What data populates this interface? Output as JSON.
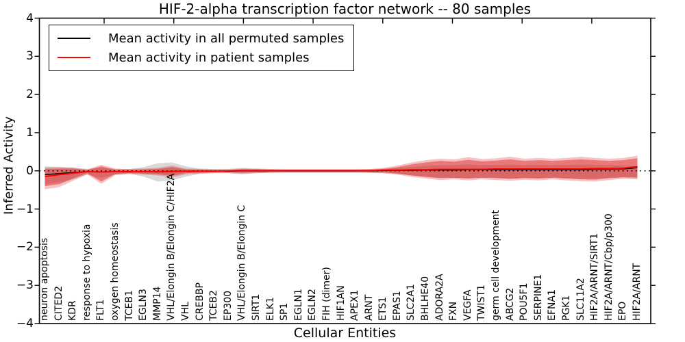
{
  "figure": {
    "title": "HIF-2-alpha transcription factor network -- 80 samples",
    "xlabel": "Cellular Entities",
    "ylabel": "Inferred Activity"
  },
  "chart_data": {
    "type": "line",
    "title": "HIF-2-alpha transcription factor network -- 80 samples",
    "xlabel": "Cellular Entities",
    "ylabel": "Inferred Activity",
    "ylim": [
      -4,
      4
    ],
    "yticks": [
      "4",
      "3",
      "2",
      "1",
      "0",
      "-1",
      "-2",
      "-3",
      "-4"
    ],
    "grid": false,
    "legend_position": "upper left",
    "zero_line": {
      "style": "dotted",
      "color": "#000000",
      "y": 0
    },
    "categories": [
      "neuron apoptosis",
      "CITED2",
      "KDR",
      "response to hypoxia",
      "FLT1",
      "oxygen homeostasis",
      "TCEB1",
      "EGLN3",
      "MMP14",
      "VHL/Elongin B/Elongin C/HIF2A",
      "VHL",
      "CREBBP",
      "TCEB2",
      "EP300",
      "VHL/Elongin B/Elongin C",
      "SIRT1",
      "ELK1",
      "SP1",
      "EGLN1",
      "EGLN2",
      "FIH (dimer)",
      "HIF1AN",
      "APEX1",
      "ARNT",
      "ETS1",
      "EPAS1",
      "SLC2A1",
      "BHLHE40",
      "ADORA2A",
      "FXN",
      "VEGFA",
      "TWIST1",
      "germ cell development",
      "ABCG2",
      "POU5F1",
      "SERPINE1",
      "EFNA1",
      "PGK1",
      "SLC11A2",
      "HIF2A/ARNT/SIRT1",
      "HIF2A/ARNT/Cbp/p300",
      "EPO",
      "HIF2A/ARNT"
    ],
    "series": [
      {
        "name": "Mean activity in all permuted samples",
        "color": "#000000",
        "width": 1.4,
        "values": [
          -0.1,
          -0.07,
          -0.04,
          -0.02,
          -0.03,
          -0.02,
          -0.02,
          -0.02,
          -0.03,
          -0.02,
          -0.01,
          -0.01,
          -0.01,
          -0.01,
          0.0,
          0.0,
          0.0,
          0.0,
          0.0,
          0.0,
          0.0,
          0.0,
          0.0,
          0.0,
          0.01,
          0.01,
          0.01,
          0.02,
          0.02,
          0.02,
          0.03,
          0.03,
          0.03,
          0.03,
          0.03,
          0.03,
          0.03,
          0.03,
          0.03,
          0.04,
          0.04,
          0.05,
          0.08
        ]
      },
      {
        "name": "Mean activity in patient samples",
        "color": "#ff0000",
        "width": 1.9,
        "values": [
          -0.15,
          -0.1,
          -0.06,
          -0.02,
          -0.03,
          -0.02,
          -0.02,
          -0.02,
          -0.02,
          -0.01,
          -0.01,
          -0.01,
          -0.01,
          0.0,
          0.01,
          0.01,
          0.01,
          0.01,
          0.01,
          0.01,
          0.01,
          0.01,
          0.01,
          0.01,
          0.02,
          0.02,
          0.03,
          0.03,
          0.04,
          0.04,
          0.04,
          0.04,
          0.05,
          0.05,
          0.05,
          0.05,
          0.05,
          0.05,
          0.05,
          0.06,
          0.06,
          0.07,
          0.11
        ]
      }
    ],
    "bands": [
      {
        "name": "permuted-samples-band",
        "fill": "rgba(130,130,130,0.30)",
        "upper": [
          0.12,
          0.1,
          0.08,
          0.05,
          0.08,
          0.05,
          0.05,
          0.1,
          0.2,
          0.22,
          0.12,
          0.06,
          0.05,
          0.05,
          0.08,
          0.05,
          0.04,
          0.04,
          0.04,
          0.04,
          0.04,
          0.04,
          0.04,
          0.04,
          0.05,
          0.07,
          0.1,
          0.13,
          0.15,
          0.15,
          0.17,
          0.15,
          0.16,
          0.17,
          0.15,
          0.16,
          0.15,
          0.16,
          0.17,
          0.16,
          0.15,
          0.14,
          0.12
        ],
        "lower": [
          -0.35,
          -0.3,
          -0.22,
          -0.1,
          -0.18,
          -0.1,
          -0.08,
          -0.15,
          -0.28,
          -0.25,
          -0.15,
          -0.08,
          -0.06,
          -0.06,
          -0.09,
          -0.06,
          -0.05,
          -0.05,
          -0.05,
          -0.05,
          -0.05,
          -0.05,
          -0.05,
          -0.05,
          -0.06,
          -0.08,
          -0.12,
          -0.15,
          -0.18,
          -0.18,
          -0.19,
          -0.17,
          -0.18,
          -0.2,
          -0.18,
          -0.19,
          -0.17,
          -0.19,
          -0.21,
          -0.2,
          -0.18,
          -0.17,
          -0.2
        ]
      },
      {
        "name": "patient-samples-band-outer",
        "fill": "rgba(220,20,20,0.26)",
        "upper": [
          0.09,
          0.1,
          0.09,
          0.04,
          0.16,
          0.06,
          0.05,
          0.06,
          0.08,
          0.14,
          0.06,
          0.05,
          0.04,
          0.04,
          0.06,
          0.06,
          0.05,
          0.04,
          0.04,
          0.04,
          0.04,
          0.04,
          0.04,
          0.05,
          0.08,
          0.14,
          0.22,
          0.28,
          0.32,
          0.3,
          0.36,
          0.31,
          0.33,
          0.37,
          0.32,
          0.34,
          0.32,
          0.34,
          0.37,
          0.34,
          0.32,
          0.34,
          0.4
        ],
        "lower": [
          -0.48,
          -0.43,
          -0.26,
          -0.09,
          -0.34,
          -0.11,
          -0.08,
          -0.1,
          -0.12,
          -0.17,
          -0.09,
          -0.07,
          -0.06,
          -0.06,
          -0.07,
          -0.06,
          -0.05,
          -0.04,
          -0.04,
          -0.04,
          -0.04,
          -0.04,
          -0.04,
          -0.05,
          -0.06,
          -0.1,
          -0.16,
          -0.2,
          -0.24,
          -0.22,
          -0.25,
          -0.22,
          -0.24,
          -0.26,
          -0.23,
          -0.25,
          -0.22,
          -0.25,
          -0.27,
          -0.28,
          -0.24,
          -0.21,
          -0.22
        ]
      },
      {
        "name": "patient-samples-band-inner",
        "fill": "rgba(220,20,20,0.42)",
        "upper": [
          0.05,
          0.06,
          0.06,
          0.02,
          0.12,
          0.03,
          0.03,
          0.04,
          0.05,
          0.1,
          0.04,
          0.03,
          0.02,
          0.02,
          0.04,
          0.04,
          0.03,
          0.03,
          0.03,
          0.03,
          0.03,
          0.03,
          0.03,
          0.03,
          0.05,
          0.1,
          0.17,
          0.22,
          0.26,
          0.24,
          0.29,
          0.25,
          0.27,
          0.3,
          0.26,
          0.28,
          0.26,
          0.28,
          0.3,
          0.28,
          0.26,
          0.28,
          0.33
        ],
        "lower": [
          -0.4,
          -0.35,
          -0.2,
          -0.06,
          -0.28,
          -0.08,
          -0.06,
          -0.07,
          -0.09,
          -0.13,
          -0.06,
          -0.05,
          -0.04,
          -0.04,
          -0.05,
          -0.04,
          -0.03,
          -0.03,
          -0.03,
          -0.03,
          -0.03,
          -0.03,
          -0.03,
          -0.03,
          -0.04,
          -0.07,
          -0.12,
          -0.16,
          -0.19,
          -0.18,
          -0.2,
          -0.18,
          -0.19,
          -0.21,
          -0.19,
          -0.2,
          -0.18,
          -0.2,
          -0.22,
          -0.23,
          -0.19,
          -0.17,
          -0.17
        ]
      }
    ]
  }
}
